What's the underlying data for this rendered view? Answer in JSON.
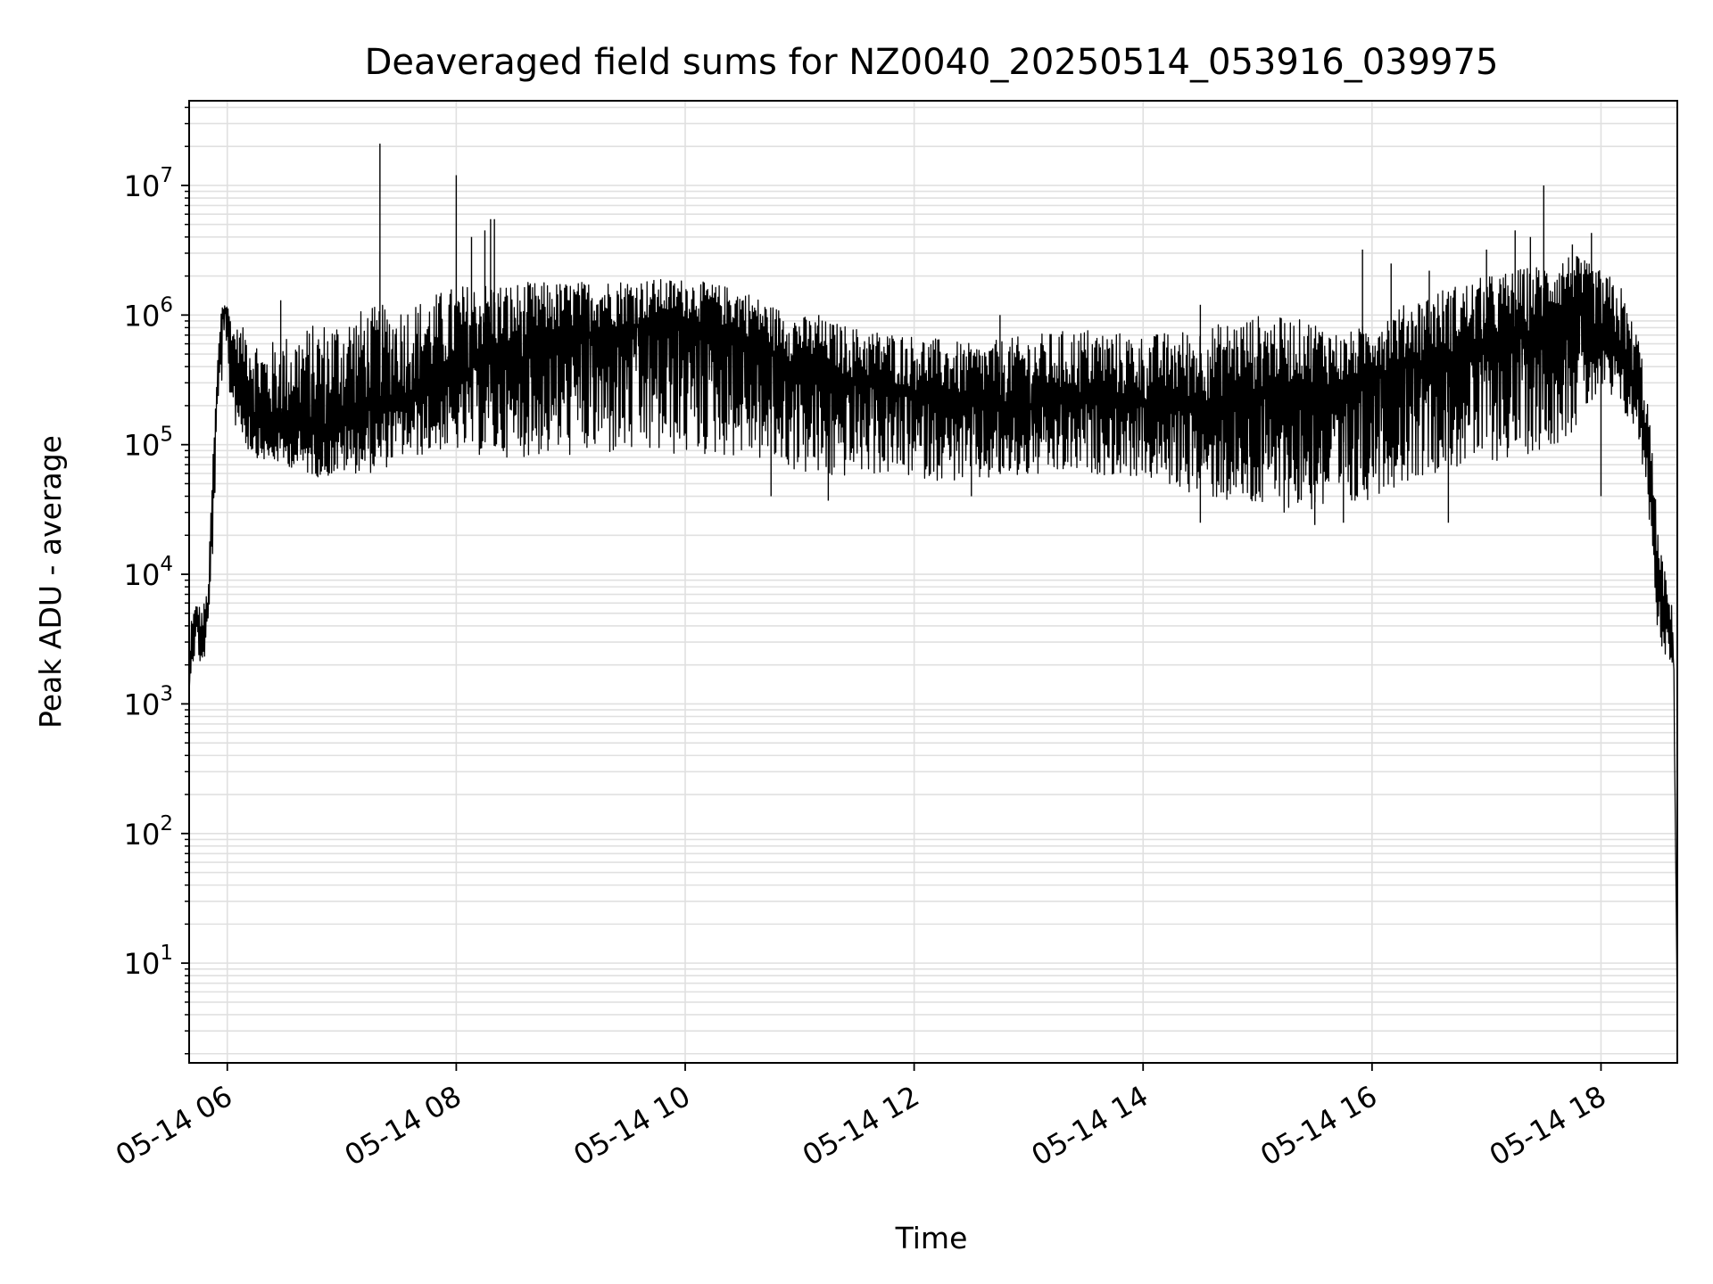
{
  "chart_data": {
    "type": "line",
    "title": "Deaveraged field sums for NZ0040_20250514_053916_039975",
    "xlabel": "Time",
    "ylabel": "Peak ADU - average",
    "yscale": "log",
    "grid": true,
    "legend": "none",
    "line_color": "#000000",
    "grid_color": "#e0e0e0",
    "xlim": [
      "2025-05-14 05:40",
      "2025-05-14 18:40"
    ],
    "ylim": [
      1.7,
      45000000
    ],
    "x_ticks": [
      {
        "value": "2025-05-14 06:00",
        "label": "05-14 06"
      },
      {
        "value": "2025-05-14 08:00",
        "label": "05-14 08"
      },
      {
        "value": "2025-05-14 10:00",
        "label": "05-14 10"
      },
      {
        "value": "2025-05-14 12:00",
        "label": "05-14 12"
      },
      {
        "value": "2025-05-14 14:00",
        "label": "05-14 14"
      },
      {
        "value": "2025-05-14 16:00",
        "label": "05-14 16"
      },
      {
        "value": "2025-05-14 18:00",
        "label": "05-14 18"
      }
    ],
    "y_ticks": [
      {
        "value": 10,
        "base": "10",
        "exp": "1"
      },
      {
        "value": 100,
        "base": "10",
        "exp": "2"
      },
      {
        "value": 1000,
        "base": "10",
        "exp": "3"
      },
      {
        "value": 10000,
        "base": "10",
        "exp": "4"
      },
      {
        "value": 100000,
        "base": "10",
        "exp": "5"
      },
      {
        "value": 1000000,
        "base": "10",
        "exp": "6"
      },
      {
        "value": 10000000,
        "base": "10",
        "exp": "7"
      }
    ],
    "x": [
      "2025-05-14 05:40",
      "2025-05-14 05:41",
      "2025-05-14 05:44",
      "2025-05-14 05:47",
      "2025-05-14 05:50",
      "2025-05-14 05:52",
      "2025-05-14 05:55",
      "2025-05-14 05:57",
      "2025-05-14 06:00",
      "2025-05-14 06:03",
      "2025-05-14 06:10",
      "2025-05-14 06:15",
      "2025-05-14 06:20",
      "2025-05-14 06:30",
      "2025-05-14 06:40",
      "2025-05-14 06:50",
      "2025-05-14 07:00",
      "2025-05-14 07:10",
      "2025-05-14 07:20",
      "2025-05-14 07:30",
      "2025-05-14 07:40",
      "2025-05-14 07:50",
      "2025-05-14 08:00",
      "2025-05-14 08:15",
      "2025-05-14 08:30",
      "2025-05-14 08:45",
      "2025-05-14 09:00",
      "2025-05-14 09:30",
      "2025-05-14 10:00",
      "2025-05-14 10:30",
      "2025-05-14 10:45",
      "2025-05-14 11:00",
      "2025-05-14 11:15",
      "2025-05-14 11:30",
      "2025-05-14 12:00",
      "2025-05-14 12:30",
      "2025-05-14 13:00",
      "2025-05-14 13:30",
      "2025-05-14 14:00",
      "2025-05-14 14:30",
      "2025-05-14 15:00",
      "2025-05-14 15:30",
      "2025-05-14 15:45",
      "2025-05-14 16:00",
      "2025-05-14 16:30",
      "2025-05-14 17:00",
      "2025-05-14 17:30",
      "2025-05-14 17:45",
      "2025-05-14 18:00",
      "2025-05-14 18:10",
      "2025-05-14 18:15",
      "2025-05-14 18:20",
      "2025-05-14 18:25",
      "2025-05-14 18:30",
      "2025-05-14 18:35",
      "2025-05-14 18:38",
      "2025-05-14 18:40"
    ],
    "series": [
      {
        "values": [
          1200,
          3500,
          5000,
          3000,
          6000,
          30000,
          300000,
          1000000,
          1100000,
          500000,
          300000,
          150000,
          120000,
          130000,
          140000,
          120000,
          150000,
          180000,
          200000,
          220000,
          250000,
          280000,
          300000,
          500000,
          400000,
          600000,
          700000,
          800000,
          900000,
          700000,
          500000,
          400000,
          350000,
          300000,
          250000,
          200000,
          200000,
          220000,
          200000,
          200000,
          250000,
          300000,
          250000,
          350000,
          450000,
          550000,
          800000,
          1200000,
          700000,
          500000,
          400000,
          250000,
          80000,
          10000,
          4000,
          3000,
          4
        ]
      }
    ],
    "low_envelope": [
      1200,
      1800,
      2500,
      1700,
      3500,
      10000,
      150000,
      300000,
      300000,
      150000,
      90000,
      80000,
      75000,
      70000,
      60000,
      55000,
      60000,
      60000,
      60000,
      80000,
      80000,
      90000,
      90000,
      80000,
      80000,
      80000,
      80000,
      80000,
      80000,
      80000,
      70000,
      60000,
      50000,
      60000,
      55000,
      50000,
      55000,
      60000,
      55000,
      40000,
      30000,
      30000,
      25000,
      40000,
      60000,
      70000,
      90000,
      120000,
      250000,
      180000,
      150000,
      100000,
      30000,
      3000,
      2200,
      2000,
      4
    ],
    "high_envelope": [
      1200,
      4500,
      6000,
      5500,
      8000,
      60000,
      500000,
      1250000,
      1200000,
      800000,
      800000,
      700000,
      600000,
      700000,
      800000,
      900000,
      1000000,
      1100000,
      1200000,
      1200000,
      1300000,
      1500000,
      1700000,
      1800000,
      1800000,
      1800000,
      1800000,
      1900000,
      1900000,
      1600000,
      1200000,
      1000000,
      900000,
      800000,
      700000,
      600000,
      700000,
      800000,
      700000,
      800000,
      1000000,
      900000,
      700000,
      900000,
      1500000,
      2000000,
      2500000,
      3000000,
      2200000,
      1800000,
      1000000,
      700000,
      200000,
      20000,
      8000,
      5000,
      4
    ],
    "spikes": [
      {
        "x": "2025-05-14 06:28",
        "y": 1300000
      },
      {
        "x": "2025-05-14 07:20",
        "y": 21000000
      },
      {
        "x": "2025-05-14 08:00",
        "y": 12000000
      },
      {
        "x": "2025-05-14 08:08",
        "y": 4000000
      },
      {
        "x": "2025-05-14 08:15",
        "y": 4500000
      },
      {
        "x": "2025-05-14 08:18",
        "y": 5500000
      },
      {
        "x": "2025-05-14 08:20",
        "y": 5500000
      },
      {
        "x": "2025-05-14 11:10",
        "y": 1000000
      },
      {
        "x": "2025-05-14 12:45",
        "y": 1000000
      },
      {
        "x": "2025-05-14 14:30",
        "y": 1200000
      },
      {
        "x": "2025-05-14 15:55",
        "y": 3200000
      },
      {
        "x": "2025-05-14 16:10",
        "y": 2500000
      },
      {
        "x": "2025-05-14 16:30",
        "y": 2200000
      },
      {
        "x": "2025-05-14 17:00",
        "y": 3200000
      },
      {
        "x": "2025-05-14 17:15",
        "y": 4500000
      },
      {
        "x": "2025-05-14 17:23",
        "y": 4000000
      },
      {
        "x": "2025-05-14 17:30",
        "y": 10000000
      },
      {
        "x": "2025-05-14 17:45",
        "y": 3500000
      },
      {
        "x": "2025-05-14 17:55",
        "y": 4300000
      }
    ],
    "dips": [
      {
        "x": "2025-05-14 10:45",
        "y": 40000
      },
      {
        "x": "2025-05-14 11:15",
        "y": 37000
      },
      {
        "x": "2025-05-14 12:30",
        "y": 40000
      },
      {
        "x": "2025-05-14 14:30",
        "y": 25000
      },
      {
        "x": "2025-05-14 15:30",
        "y": 24000
      },
      {
        "x": "2025-05-14 15:45",
        "y": 25000
      },
      {
        "x": "2025-05-14 16:40",
        "y": 25000
      },
      {
        "x": "2025-05-14 18:00",
        "y": 40000
      }
    ]
  }
}
